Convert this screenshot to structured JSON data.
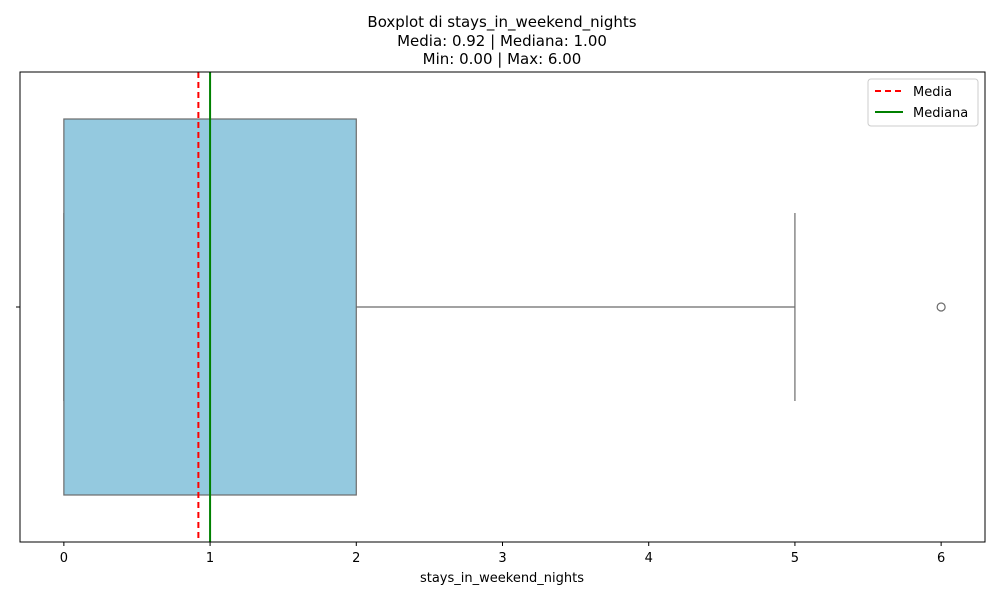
{
  "chart_data": {
    "type": "boxplot",
    "title_lines": [
      "Boxplot di stays_in_weekend_nights",
      "Media: 0.92 | Mediana: 1.00",
      "Min: 0.00 | Max: 6.00"
    ],
    "xlabel": "stays_in_weekend_nights",
    "ylabel": "",
    "xlim": [
      -0.3,
      6.3
    ],
    "x_ticks": [
      0,
      1,
      2,
      3,
      4,
      5,
      6
    ],
    "x_tick_labels": [
      "0",
      "1",
      "2",
      "3",
      "4",
      "5",
      "6"
    ],
    "box": {
      "whisker_low": 0,
      "q1": 0,
      "median": 1,
      "q3": 2,
      "whisker_high": 5,
      "outliers": [
        6
      ]
    },
    "reference_lines": [
      {
        "name": "Media",
        "value": 0.92,
        "color": "#ff0000",
        "style": "dashed"
      },
      {
        "name": "Mediana",
        "value": 1.0,
        "color": "#008000",
        "style": "solid"
      }
    ],
    "legend": {
      "placement": "top-right",
      "entries": [
        "Media",
        "Mediana"
      ]
    },
    "colors": {
      "box_fill": "#94c9df",
      "box_edge": "#6b6b6b"
    },
    "grid": false
  }
}
